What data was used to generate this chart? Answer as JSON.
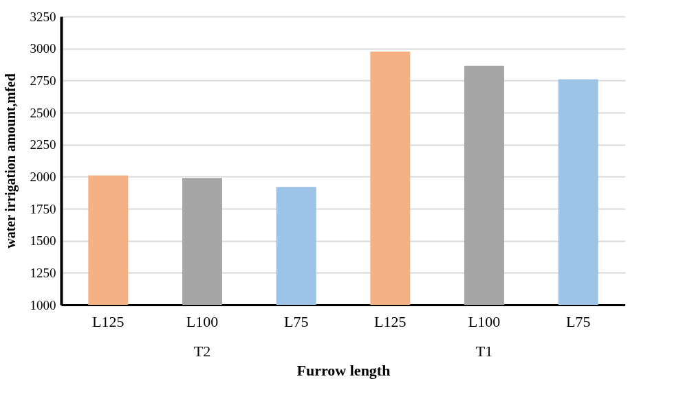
{
  "chart_data": {
    "type": "bar",
    "categories": [
      "L125",
      "L100",
      "L75",
      "L125",
      "L100",
      "L75"
    ],
    "values": [
      2010,
      1990,
      1920,
      2975,
      2865,
      2760
    ],
    "colors": [
      "#f4b183",
      "#a6a6a6",
      "#9dc3e6",
      "#f4b183",
      "#a6a6a6",
      "#9dc3e6"
    ],
    "xlabel": "Furrow length",
    "ylabel": "water irrigation amount,mfed",
    "annotations": [
      "T2",
      "T1"
    ],
    "ylim": [
      1000,
      3250
    ],
    "yticks": [
      1000,
      1250,
      1500,
      1750,
      2000,
      2250,
      2500,
      2750,
      3000,
      3250
    ],
    "grid": "y"
  }
}
